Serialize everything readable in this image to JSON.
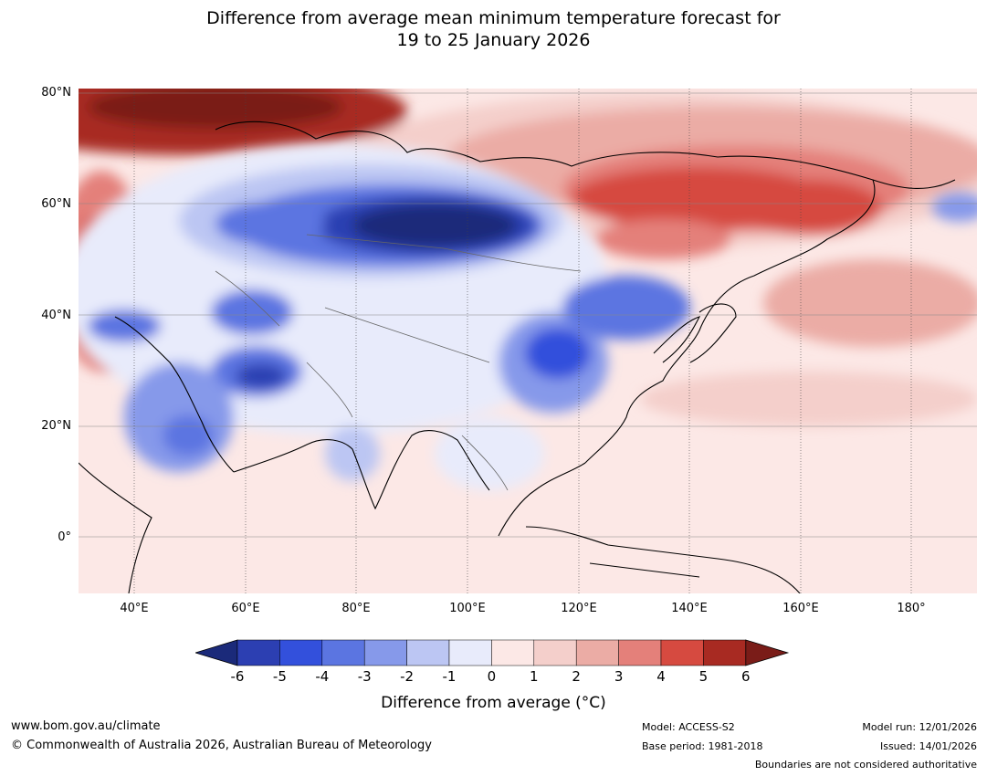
{
  "title": {
    "line1": "Difference from average mean minimum temperature forecast for",
    "line2": "19 to 25 January 2026"
  },
  "axes": {
    "lat_labels": [
      "80°N",
      "60°N",
      "40°N",
      "20°N",
      "0°"
    ],
    "lon_labels": [
      "40°E",
      "60°E",
      "80°E",
      "100°E",
      "120°E",
      "140°E",
      "160°E",
      "180°"
    ]
  },
  "colorbar": {
    "ticks": [
      "-6",
      "-5",
      "-4",
      "-3",
      "-2",
      "-1",
      "0",
      "1",
      "2",
      "3",
      "4",
      "5",
      "6"
    ],
    "colors": [
      "#1b2a7a",
      "#2c3fb2",
      "#3350dc",
      "#5b75e1",
      "#8699ea",
      "#bcc6f3",
      "#e8ebfb",
      "#fce8e6",
      "#f4cfcb",
      "#ebaca5",
      "#e4807a",
      "#d64a40",
      "#a82a22",
      "#7a1c18"
    ],
    "label": "Difference from average (°C)"
  },
  "footer": {
    "website": "www.bom.gov.au/climate",
    "copyright": "© Commonwealth of Australia 2026, Australian Bureau of Meteorology",
    "model": "Model: ACCESS-S2",
    "base_period": "Base period: 1981-2018",
    "model_run": "Model run: 12/01/2026",
    "issued": "Issued: 14/01/2026",
    "disclaimer": "Boundaries are not considered authoritative"
  }
}
